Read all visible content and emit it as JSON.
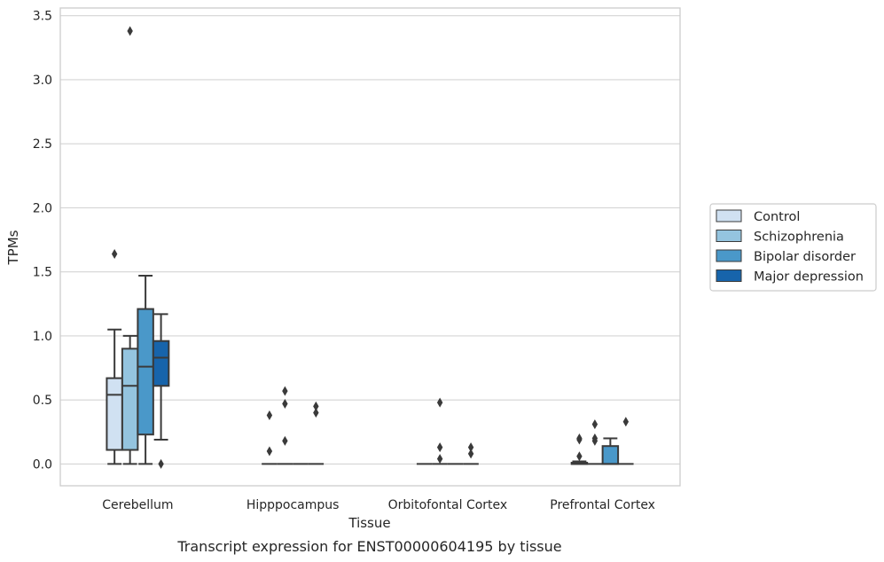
{
  "chart_data": {
    "type": "box",
    "title": "Transcript expression for ENST00000604195 by tissue",
    "xlabel": "Tissue",
    "ylabel": "TPMs",
    "ylim": [
      -0.17,
      3.56
    ],
    "yticks": [
      "0.0",
      "0.5",
      "1.0",
      "1.5",
      "2.0",
      "2.5",
      "3.0",
      "3.5"
    ],
    "ytick_values": [
      0,
      0.5,
      1.0,
      1.5,
      2.0,
      2.5,
      3.0,
      3.5
    ],
    "grid": true,
    "legend_position": "right",
    "categories": [
      "Cerebellum",
      "Hipppocampus",
      "Orbitofontal Cortex",
      "Prefrontal Cortex"
    ],
    "series": [
      {
        "name": "Control",
        "color": "#d0e1f2",
        "boxes": [
          {
            "q1": 0.11,
            "median": 0.54,
            "q3": 0.67,
            "whisker_low": 0.0,
            "whisker_high": 1.05,
            "outliers": [
              1.64
            ]
          },
          {
            "q1": 0.0,
            "median": 0.0,
            "q3": 0.0,
            "whisker_low": 0.0,
            "whisker_high": 0.0,
            "outliers": [
              0.1,
              0.38
            ]
          },
          {
            "q1": 0.0,
            "median": 0.0,
            "q3": 0.0,
            "whisker_low": 0.0,
            "whisker_high": 0.0,
            "outliers": []
          },
          {
            "q1": 0.0,
            "median": 0.0,
            "q3": 0.01,
            "whisker_low": 0.0,
            "whisker_high": 0.02,
            "outliers": [
              0.06,
              0.19,
              0.2
            ]
          }
        ]
      },
      {
        "name": "Schizophrenia",
        "color": "#94c4df",
        "boxes": [
          {
            "q1": 0.11,
            "median": 0.61,
            "q3": 0.9,
            "whisker_low": 0.0,
            "whisker_high": 1.0,
            "outliers": [
              3.38
            ]
          },
          {
            "q1": 0.0,
            "median": 0.0,
            "q3": 0.0,
            "whisker_low": 0.0,
            "whisker_high": 0.0,
            "outliers": [
              0.18,
              0.47,
              0.57
            ]
          },
          {
            "q1": 0.0,
            "median": 0.0,
            "q3": 0.0,
            "whisker_low": 0.0,
            "whisker_high": 0.0,
            "outliers": [
              0.04,
              0.13,
              0.48
            ]
          },
          {
            "q1": 0.0,
            "median": 0.0,
            "q3": 0.0,
            "whisker_low": 0.0,
            "whisker_high": 0.0,
            "outliers": [
              0.18,
              0.2,
              0.31
            ]
          }
        ]
      },
      {
        "name": "Bipolar disorder",
        "color": "#4a98c9",
        "boxes": [
          {
            "q1": 0.23,
            "median": 0.76,
            "q3": 1.21,
            "whisker_low": 0.0,
            "whisker_high": 1.47,
            "outliers": []
          },
          {
            "q1": 0.0,
            "median": 0.0,
            "q3": 0.0,
            "whisker_low": 0.0,
            "whisker_high": 0.0,
            "outliers": []
          },
          {
            "q1": 0.0,
            "median": 0.0,
            "q3": 0.0,
            "whisker_low": 0.0,
            "whisker_high": 0.0,
            "outliers": []
          },
          {
            "q1": 0.0,
            "median": 0.0,
            "q3": 0.14,
            "whisker_low": 0.0,
            "whisker_high": 0.2,
            "outliers": []
          }
        ]
      },
      {
        "name": "Major depression",
        "color": "#1764ab",
        "boxes": [
          {
            "q1": 0.61,
            "median": 0.83,
            "q3": 0.96,
            "whisker_low": 0.19,
            "whisker_high": 1.17,
            "outliers": [
              0.0
            ]
          },
          {
            "q1": 0.0,
            "median": 0.0,
            "q3": 0.0,
            "whisker_low": 0.0,
            "whisker_high": 0.0,
            "outliers": [
              0.4,
              0.45
            ]
          },
          {
            "q1": 0.0,
            "median": 0.0,
            "q3": 0.0,
            "whisker_low": 0.0,
            "whisker_high": 0.0,
            "outliers": [
              0.08,
              0.13
            ]
          },
          {
            "q1": 0.0,
            "median": 0.0,
            "q3": 0.0,
            "whisker_low": 0.0,
            "whisker_high": 0.0,
            "outliers": [
              0.33
            ]
          }
        ]
      }
    ]
  }
}
